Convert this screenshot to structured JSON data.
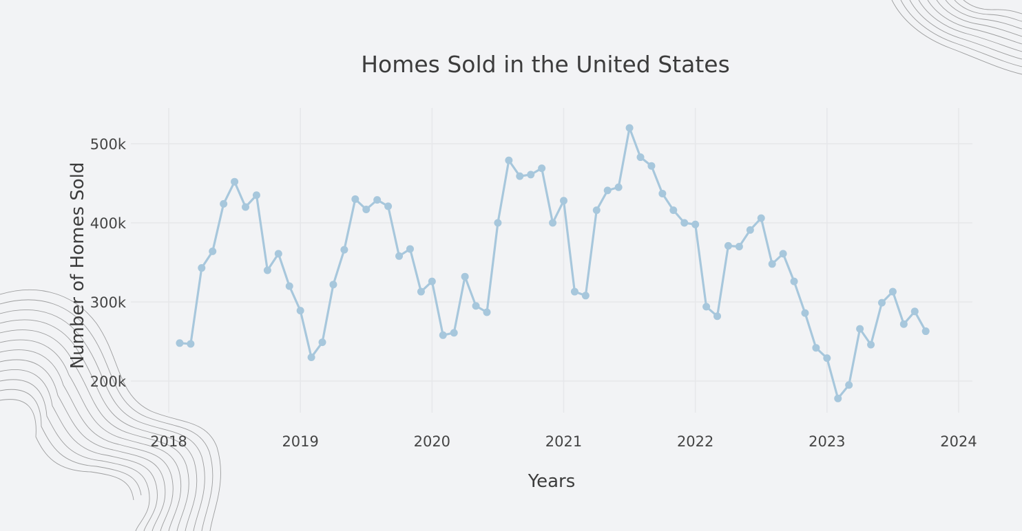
{
  "colors": {
    "background": "#f2f3f5",
    "series": "#a7c7dc",
    "grid": "#e6e7ea",
    "text": "#3c3c3c"
  },
  "chart_data": {
    "type": "line",
    "title": "Homes Sold in the United States",
    "xlabel": "Years",
    "ylabel": "Number of Homes Sold",
    "x_ticks": [
      "2018",
      "2019",
      "2020",
      "2021",
      "2022",
      "2023",
      "2024"
    ],
    "y_ticks": [
      "200k",
      "300k",
      "400k",
      "500k"
    ],
    "y_tick_values": [
      200000,
      300000,
      400000,
      500000
    ],
    "xlim": [
      "2018-01-01",
      "2024-02-01"
    ],
    "ylim": [
      157000,
      547000
    ],
    "grid": true,
    "legend": "none",
    "marker": "circle",
    "series": [
      {
        "x": [
          "2018-02",
          "2018-03",
          "2018-04",
          "2018-05",
          "2018-06",
          "2018-07",
          "2018-08",
          "2018-09",
          "2018-10",
          "2018-11",
          "2018-12",
          "2019-01",
          "2019-02",
          "2019-03",
          "2019-04",
          "2019-05",
          "2019-06",
          "2019-07",
          "2019-08",
          "2019-09",
          "2019-10",
          "2019-11",
          "2019-12",
          "2020-01",
          "2020-02",
          "2020-03",
          "2020-04",
          "2020-05",
          "2020-06",
          "2020-07",
          "2020-08",
          "2020-09",
          "2020-10",
          "2020-11",
          "2020-12",
          "2021-01",
          "2021-02",
          "2021-03",
          "2021-04",
          "2021-05",
          "2021-06",
          "2021-07",
          "2021-08",
          "2021-09",
          "2021-10",
          "2021-11",
          "2021-12",
          "2022-01",
          "2022-02",
          "2022-03",
          "2022-04",
          "2022-05",
          "2022-06",
          "2022-07",
          "2022-08",
          "2022-09",
          "2022-10",
          "2022-11",
          "2022-12",
          "2023-01",
          "2023-02",
          "2023-03",
          "2023-04",
          "2023-05",
          "2023-06",
          "2023-07",
          "2023-08",
          "2023-09",
          "2023-10"
        ],
        "values": [
          248000,
          247000,
          343000,
          364000,
          424000,
          452000,
          420000,
          435000,
          340000,
          361000,
          320000,
          289000,
          230000,
          249000,
          322000,
          366000,
          430000,
          417000,
          429000,
          421000,
          358000,
          367000,
          313000,
          326000,
          258000,
          261000,
          332000,
          295000,
          287000,
          400000,
          479000,
          459000,
          461000,
          469000,
          400000,
          428000,
          313000,
          308000,
          416000,
          441000,
          445000,
          520000,
          483000,
          472000,
          437000,
          416000,
          400000,
          398000,
          294000,
          282000,
          371000,
          370000,
          391000,
          406000,
          348000,
          361000,
          326000,
          286000,
          242000,
          229000,
          178000,
          195000,
          266000,
          246000,
          299000,
          313000,
          272000,
          288000,
          263000
        ]
      }
    ]
  }
}
